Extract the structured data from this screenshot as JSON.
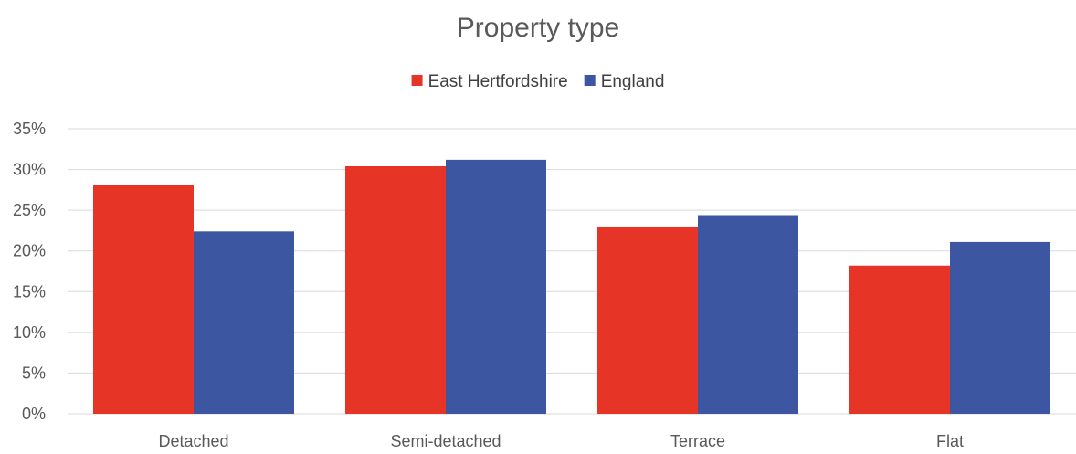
{
  "chart_data": {
    "type": "bar",
    "title": "Property type",
    "xlabel": "",
    "ylabel": "",
    "categories": [
      "Detached",
      "Semi-detached",
      "Terrace",
      "Flat"
    ],
    "series": [
      {
        "name": "East Hertfordshire",
        "color": "#e63426",
        "values": [
          28.1,
          30.4,
          23.0,
          18.2
        ]
      },
      {
        "name": "England",
        "color": "#3c56a2",
        "values": [
          22.4,
          31.2,
          24.4,
          21.1
        ]
      }
    ],
    "ylim": [
      0,
      35
    ],
    "yticks": [
      0,
      5,
      10,
      15,
      20,
      25,
      30,
      35
    ],
    "ytick_labels": [
      "0%",
      "5%",
      "10%",
      "15%",
      "20%",
      "25%",
      "30%",
      "35%"
    ],
    "grid": true,
    "legend_position": "top-center"
  }
}
